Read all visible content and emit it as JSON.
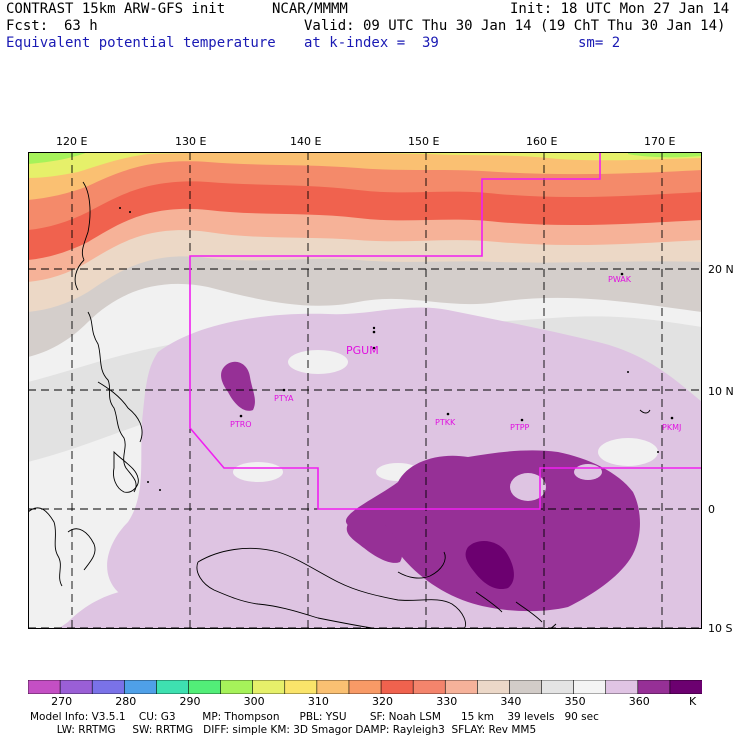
{
  "header": {
    "title": "CONTRAST 15km ARW-GFS init",
    "org": "NCAR/MMMM",
    "init": "Init: 18 UTC Mon 27 Jan 14",
    "fcst_label": "Fcst:",
    "fcst_value": "63 h",
    "valid": "Valid: 09 UTC Thu 30 Jan 14 (19 ChT Thu 30 Jan 14)",
    "field": "Equivalent potential temperature",
    "level": "at k-index =  39",
    "smooth": "sm= 2"
  },
  "axes": {
    "lon_labels": [
      "120 E",
      "130 E",
      "140 E",
      "150 E",
      "160 E",
      "170 E"
    ],
    "lat_labels": [
      "20 N",
      "10 N",
      "0",
      "10 S"
    ]
  },
  "stations": [
    "PGUM",
    "PWAK",
    "PTYA",
    "PTRO",
    "PTKK",
    "PTPP",
    "PKMJ"
  ],
  "colorbar": {
    "labels": [
      "270",
      "280",
      "290",
      "300",
      "310",
      "320",
      "330",
      "340",
      "350",
      "360"
    ],
    "unit": "K",
    "colors": [
      "#c44fc4",
      "#9a5fd6",
      "#7a72e8",
      "#4fa0e8",
      "#3ee0b0",
      "#52ee78",
      "#a6f25a",
      "#e6f06a",
      "#fae46a",
      "#fac072",
      "#f89a66",
      "#f0624e",
      "#f4846c",
      "#f6b29a",
      "#ecd8c8",
      "#d2ccc8",
      "#e4e4e4",
      "#f4f4f4",
      "#e0c4e4",
      "#963096",
      "#6c0070"
    ]
  },
  "footer": {
    "line1": "Model Info: V3.5.1    CU: G3        MP: Thompson      PBL: YSU       SF: Noah LSM      15 km    39 levels   90 sec",
    "line2": "        LW: RRTMG     SW: RRTMG   DIFF: simple KM: 3D Smagor DAMP: Rayleigh3  SFLAY: Rev MM5"
  }
}
